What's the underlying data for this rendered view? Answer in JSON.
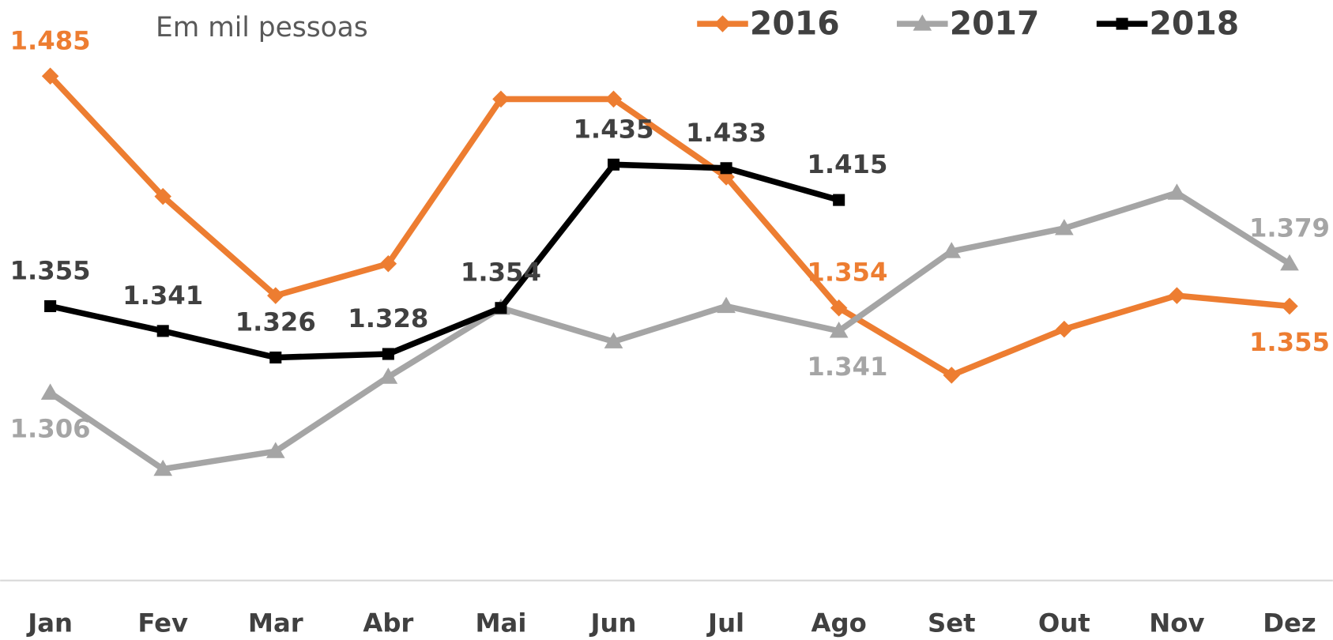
{
  "chart_data": {
    "type": "line",
    "subtitle": "Em mil pessoas",
    "categories": [
      "Jan",
      "Fev",
      "Mar",
      "Abr",
      "Mai",
      "Jun",
      "Jul",
      "Ago",
      "Set",
      "Out",
      "Nov",
      "Dez"
    ],
    "ylim": [
      1200,
      1528
    ],
    "series": [
      {
        "name": "2016",
        "color": "#ed7d31",
        "values": [
          1485,
          1417,
          1361,
          1379,
          1472,
          1472,
          1428,
          1354,
          1316,
          1342,
          1361,
          1355
        ],
        "value_labels": [
          "1.485",
          null,
          null,
          null,
          null,
          null,
          null,
          "1.354",
          null,
          null,
          null,
          "1.355"
        ]
      },
      {
        "name": "2017",
        "color": "#a5a5a5",
        "values": [
          1306,
          1263,
          1273,
          1315,
          1354,
          1335,
          1355,
          1341,
          1386,
          1399,
          1419,
          1379
        ],
        "value_labels": [
          "1.306",
          null,
          null,
          null,
          null,
          null,
          null,
          "1.341",
          null,
          null,
          null,
          "1.379"
        ]
      },
      {
        "name": "2018",
        "color": "#000000",
        "values": [
          1355,
          1341,
          1326,
          1328,
          1354,
          1435,
          1433,
          1415,
          null,
          null,
          null,
          null
        ],
        "value_labels": [
          "1.355",
          "1.341",
          "1.326",
          "1.328",
          "1.354",
          "1.435",
          "1.433",
          "1.415",
          null,
          null,
          null,
          null
        ]
      }
    ]
  }
}
